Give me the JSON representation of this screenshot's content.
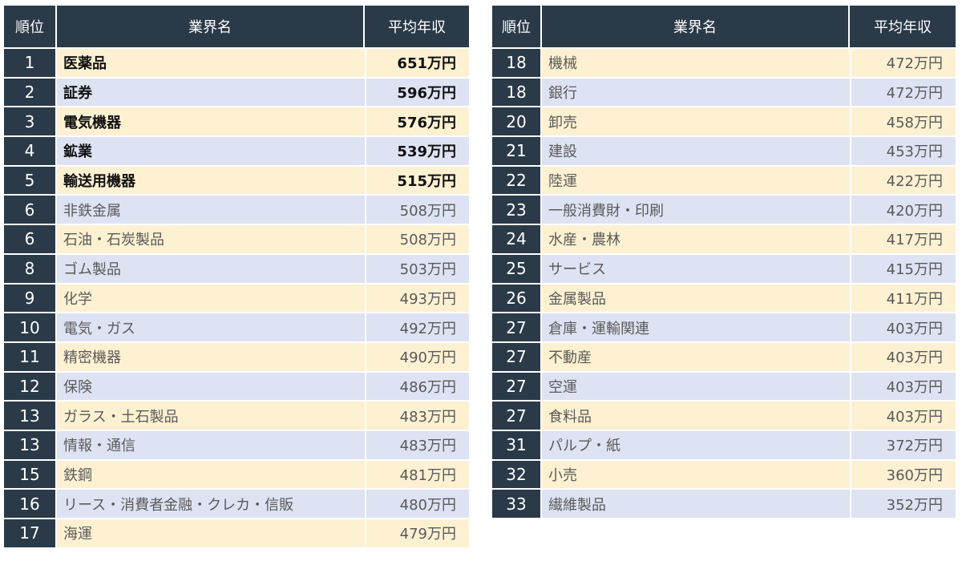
{
  "headers": {
    "rank": "順位",
    "industry": "業界名",
    "salary": "平均年収"
  },
  "colors": {
    "header_bg": "#2b3a48",
    "row_yellow": "#fdf1d2",
    "row_blue": "#dde3f3"
  },
  "left_rows": [
    {
      "rank": "1",
      "name": "医薬品",
      "salary": "651万円"
    },
    {
      "rank": "2",
      "name": "証券",
      "salary": "596万円"
    },
    {
      "rank": "3",
      "name": "電気機器",
      "salary": "576万円"
    },
    {
      "rank": "4",
      "name": "鉱業",
      "salary": "539万円"
    },
    {
      "rank": "5",
      "name": "輸送用機器",
      "salary": "515万円"
    },
    {
      "rank": "6",
      "name": "非鉄金属",
      "salary": "508万円"
    },
    {
      "rank": "6",
      "name": "石油・石炭製品",
      "salary": "508万円"
    },
    {
      "rank": "8",
      "name": "ゴム製品",
      "salary": "503万円"
    },
    {
      "rank": "9",
      "name": "化学",
      "salary": "493万円"
    },
    {
      "rank": "10",
      "name": "電気・ガス",
      "salary": "492万円"
    },
    {
      "rank": "11",
      "name": "精密機器",
      "salary": "490万円"
    },
    {
      "rank": "12",
      "name": "保険",
      "salary": "486万円"
    },
    {
      "rank": "13",
      "name": "ガラス・土石製品",
      "salary": "483万円"
    },
    {
      "rank": "13",
      "name": "情報・通信",
      "salary": "483万円"
    },
    {
      "rank": "15",
      "name": "鉄鋼",
      "salary": "481万円"
    },
    {
      "rank": "16",
      "name": "リース・消費者金融・クレカ・信販",
      "salary": "480万円"
    },
    {
      "rank": "17",
      "name": "海運",
      "salary": "479万円"
    }
  ],
  "right_rows": [
    {
      "rank": "18",
      "name": "機械",
      "salary": "472万円"
    },
    {
      "rank": "18",
      "name": "銀行",
      "salary": "472万円"
    },
    {
      "rank": "20",
      "name": "卸売",
      "salary": "458万円"
    },
    {
      "rank": "21",
      "name": "建設",
      "salary": "453万円"
    },
    {
      "rank": "22",
      "name": "陸運",
      "salary": "422万円"
    },
    {
      "rank": "23",
      "name": "一般消費財・印刷",
      "salary": "420万円"
    },
    {
      "rank": "24",
      "name": "水産・農林",
      "salary": "417万円"
    },
    {
      "rank": "25",
      "name": "サービス",
      "salary": "415万円"
    },
    {
      "rank": "26",
      "name": "金属製品",
      "salary": "411万円"
    },
    {
      "rank": "27",
      "name": "倉庫・運輸関連",
      "salary": "403万円"
    },
    {
      "rank": "27",
      "name": "不動産",
      "salary": "403万円"
    },
    {
      "rank": "27",
      "name": "空運",
      "salary": "403万円"
    },
    {
      "rank": "27",
      "name": "食料品",
      "salary": "403万円"
    },
    {
      "rank": "31",
      "name": "パルプ・紙",
      "salary": "372万円"
    },
    {
      "rank": "32",
      "name": "小売",
      "salary": "360万円"
    },
    {
      "rank": "33",
      "name": "繊維製品",
      "salary": "352万円"
    }
  ]
}
